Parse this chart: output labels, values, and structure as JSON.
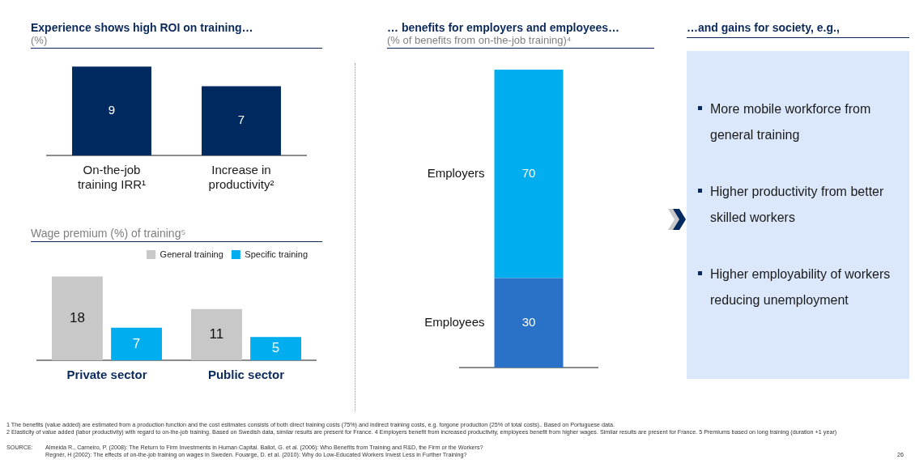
{
  "chart_data": [
    {
      "type": "bar",
      "title": "Experience shows high ROI on training…",
      "subtitle": "(%)",
      "categories": [
        "On-the-job training IRR¹",
        "Increase in productivity²"
      ],
      "values": [
        9,
        7
      ],
      "color": "#002960",
      "data_labels": true
    },
    {
      "type": "bar",
      "title": "Wage premium (%) of training⁵",
      "categories": [
        "Private sector",
        "Public sector"
      ],
      "series": [
        {
          "name": "General training",
          "color": "#c8c8c8",
          "values": [
            18,
            11
          ]
        },
        {
          "name": "Specific training",
          "color": "#00aeef",
          "values": [
            7,
            5
          ]
        }
      ],
      "legend": "top right",
      "data_labels": true
    },
    {
      "type": "bar",
      "title": "… benefits for employers and employees…",
      "subtitle": "(% of benefits from on-the-job training)⁴",
      "categories": [
        null
      ],
      "stacked": true,
      "series": [
        {
          "name": "Employees",
          "color": "#2a72c8",
          "values": [
            30
          ]
        },
        {
          "name": "Employers",
          "color": "#00aeef",
          "values": [
            70
          ]
        }
      ],
      "data_labels": true
    },
    {
      "type": "other",
      "title": "…and gains for society, e.g.,",
      "annotations": [
        "More mobile workforce from general training",
        "Higher productivity from better skilled workers",
        "Higher employability of workers reducing unemployment"
      ]
    },
    {
      "type": "other",
      "annotations": [
        "1 The benefits (value added) are estimated from a production function and the cost estimates consists of both direct training costs (75%) and indirect training costs, e.g. forgone production (25% of total costs).. Based on Portuguese data.",
        "2 Elasticity of value added (labor productivity) with regard to on-the-job training. Based on Swedish data, similar results are present for France. 4 Employers benefit from increased productivity, employees benefit from higher wages. Similar results are present for France.  5 Premiums based on long training (duration +1 year)",
        "SOURCE:",
        "Almeida R., Carneiro, P. (2008): The Return to Firm Investments in Human Capital. Ballot, G. et al. (2006): Who Benefits from Training and R&D, the Firm or the Workers?",
        "Regnér, H (2002): The effects of on-the-job training on wages in Sweden. Fouarge, D. et al. (2010): Why do Low-Educated Workers Invest Less in Further Training?",
        "26"
      ]
    }
  ]
}
